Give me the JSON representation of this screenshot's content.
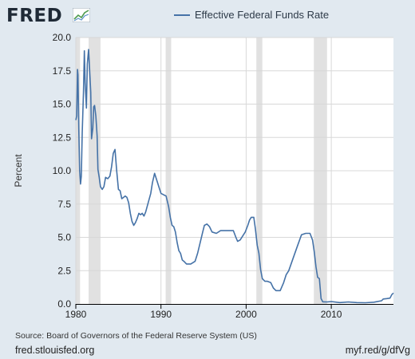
{
  "header": {
    "logo_text": "FRED",
    "logo_icon": "fred-chart-logo-icon"
  },
  "legend": {
    "label": "Effective Federal Funds Rate",
    "color": "#4572a7"
  },
  "footer": {
    "source": "Source: Board of Governors of the Federal Reserve System (US)",
    "site": "fred.stlouisfed.org",
    "short_link": "myf.red/g/dfVg"
  },
  "colors": {
    "background": "#e1e9f0",
    "plot_background": "#ffffff",
    "line": "#4572a7",
    "recession": "#e1e1e1",
    "grid": "#d8d8d8"
  },
  "chart_data": {
    "type": "line",
    "title": "",
    "xlabel": "",
    "ylabel": "Percent",
    "xlim": [
      1980.0,
      2017.3
    ],
    "ylim": [
      0,
      20
    ],
    "xticks": [
      1980,
      1990,
      2000,
      2010
    ],
    "yticks": [
      0,
      2.5,
      5,
      7.5,
      10,
      12.5,
      15,
      17.5,
      20
    ],
    "ytick_labels": [
      "0.0",
      "2.5",
      "5.0",
      "7.5",
      "10.0",
      "12.5",
      "15.0",
      "17.5",
      "20.0"
    ],
    "grid": true,
    "legend": "top",
    "recessions": [
      [
        1980.0,
        1980.5
      ],
      [
        1981.5,
        1982.9
      ],
      [
        1990.55,
        1991.2
      ],
      [
        2001.2,
        2001.9
      ],
      [
        2007.95,
        2009.5
      ]
    ],
    "series": [
      {
        "name": "Effective Federal Funds Rate",
        "x": [
          1980.0,
          1980.1,
          1980.2,
          1980.25,
          1980.35,
          1980.45,
          1980.55,
          1980.65,
          1980.75,
          1980.9,
          1981.0,
          1981.1,
          1981.25,
          1981.35,
          1981.5,
          1981.6,
          1981.75,
          1981.85,
          1982.0,
          1982.1,
          1982.2,
          1982.35,
          1982.5,
          1982.6,
          1982.75,
          1982.9,
          1983.1,
          1983.3,
          1983.5,
          1983.75,
          1984.0,
          1984.2,
          1984.4,
          1984.6,
          1984.8,
          1985.0,
          1985.2,
          1985.4,
          1985.6,
          1985.8,
          1986.0,
          1986.2,
          1986.4,
          1986.6,
          1986.8,
          1987.0,
          1987.2,
          1987.4,
          1987.6,
          1987.8,
          1988.0,
          1988.2,
          1988.5,
          1988.8,
          1989.0,
          1989.25,
          1989.5,
          1989.75,
          1990.0,
          1990.3,
          1990.6,
          1990.9,
          1991.1,
          1991.3,
          1991.5,
          1991.7,
          1991.9,
          1992.1,
          1992.3,
          1992.5,
          1992.7,
          1993.0,
          1993.5,
          1994.0,
          1994.3,
          1994.6,
          1994.9,
          1995.1,
          1995.4,
          1995.7,
          1996.0,
          1996.5,
          1997.0,
          1997.5,
          1998.0,
          1998.5,
          1998.8,
          1999.0,
          1999.3,
          1999.6,
          1999.9,
          2000.2,
          2000.4,
          2000.6,
          2000.9,
          2001.1,
          2001.3,
          2001.5,
          2001.7,
          2001.9,
          2002.2,
          2002.5,
          2002.9,
          2003.2,
          2003.5,
          2004.0,
          2004.4,
          2004.7,
          2005.0,
          2005.5,
          2006.0,
          2006.5,
          2007.0,
          2007.5,
          2007.8,
          2008.0,
          2008.2,
          2008.4,
          2008.6,
          2008.8,
          2009.0,
          2009.5,
          2010.0,
          2011.0,
          2012.0,
          2013.0,
          2014.0,
          2015.0,
          2015.9,
          2016.1,
          2016.5,
          2016.9,
          2017.1,
          2017.3
        ],
        "values": [
          13.8,
          14.1,
          17.6,
          17.2,
          13.2,
          10.0,
          9.0,
          9.6,
          12.8,
          15.9,
          19.0,
          16.6,
          14.7,
          18.0,
          19.1,
          17.8,
          15.9,
          12.4,
          13.2,
          14.8,
          14.9,
          14.1,
          12.6,
          10.1,
          9.5,
          8.8,
          8.6,
          8.8,
          9.5,
          9.4,
          9.6,
          10.3,
          11.3,
          11.6,
          10.0,
          8.6,
          8.5,
          7.9,
          8.0,
          8.1,
          8.0,
          7.6,
          6.8,
          6.2,
          5.9,
          6.1,
          6.4,
          6.8,
          6.7,
          6.8,
          6.6,
          6.9,
          7.6,
          8.3,
          9.1,
          9.8,
          9.3,
          8.8,
          8.3,
          8.2,
          8.1,
          7.3,
          6.5,
          5.9,
          5.8,
          5.4,
          4.6,
          4.0,
          3.8,
          3.3,
          3.2,
          3.0,
          3.0,
          3.2,
          3.8,
          4.6,
          5.4,
          5.9,
          6.0,
          5.8,
          5.4,
          5.3,
          5.5,
          5.5,
          5.5,
          5.5,
          5.0,
          4.7,
          4.8,
          5.1,
          5.4,
          5.9,
          6.3,
          6.5,
          6.5,
          5.6,
          4.4,
          3.8,
          2.6,
          1.9,
          1.7,
          1.7,
          1.6,
          1.2,
          1.0,
          1.0,
          1.6,
          2.2,
          2.5,
          3.4,
          4.3,
          5.2,
          5.3,
          5.3,
          4.8,
          3.9,
          2.8,
          2.0,
          1.9,
          0.4,
          0.16,
          0.15,
          0.18,
          0.1,
          0.15,
          0.1,
          0.09,
          0.13,
          0.24,
          0.37,
          0.4,
          0.44,
          0.7,
          0.82
        ]
      }
    ]
  }
}
